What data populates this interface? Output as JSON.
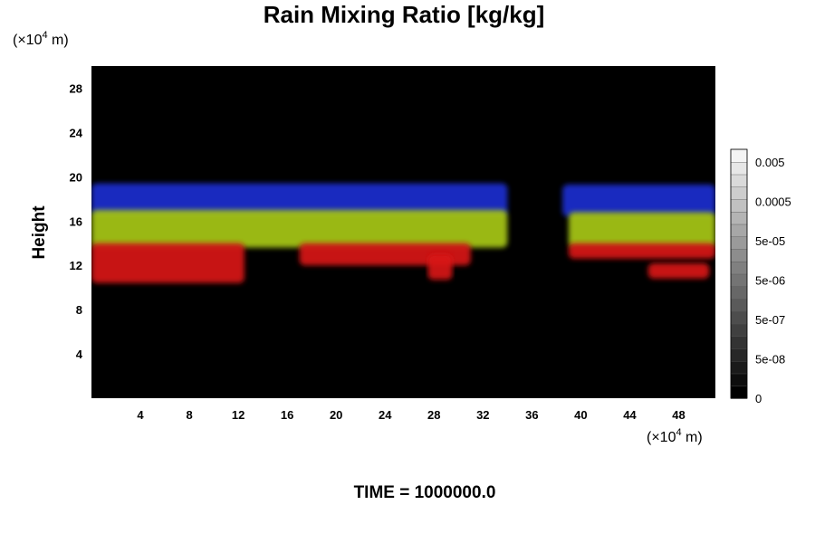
{
  "chart_data": {
    "type": "heatmap",
    "title": "Rain Mixing Ratio [kg/kg]",
    "ylabel": "Height",
    "xlabel": "",
    "x_unit": {
      "prefix": "(×10",
      "exponent": "4",
      "suffix": " m)"
    },
    "y_unit": {
      "prefix": "(×10",
      "exponent": "4",
      "suffix": " m)"
    },
    "xlim": [
      0,
      51
    ],
    "ylim": [
      0,
      30
    ],
    "x_ticks": [
      4,
      8,
      12,
      16,
      20,
      24,
      28,
      32,
      36,
      40,
      44,
      48
    ],
    "y_ticks": [
      4,
      8,
      12,
      16,
      20,
      24,
      28
    ],
    "background_color": "#000000",
    "bands": [
      {
        "color": "#1a2fd0",
        "segments": [
          {
            "x0": 0,
            "x1": 34,
            "y_top": 19.4,
            "y_bottom": 16.5
          },
          {
            "x0": 38.5,
            "x1": 51,
            "y_top": 19.3,
            "y_bottom": 16.4
          }
        ]
      },
      {
        "color": "#a8c818",
        "segments": [
          {
            "x0": 0,
            "x1": 34,
            "y_top": 17.0,
            "y_bottom": 13.6
          },
          {
            "x0": 39,
            "x1": 51,
            "y_top": 16.8,
            "y_bottom": 13.6
          }
        ]
      },
      {
        "color": "#d81212",
        "segments": [
          {
            "x0": 0,
            "x1": 12.5,
            "y_top": 14.0,
            "y_bottom": 10.4
          },
          {
            "x0": 17,
            "x1": 31,
            "y_top": 14.0,
            "y_bottom": 12.0
          },
          {
            "x0": 27.5,
            "x1": 29.5,
            "y_top": 13.0,
            "y_bottom": 10.7
          },
          {
            "x0": 39,
            "x1": 51,
            "y_top": 14.0,
            "y_bottom": 12.6
          },
          {
            "x0": 45.5,
            "x1": 50.5,
            "y_top": 12.2,
            "y_bottom": 10.8
          }
        ]
      }
    ],
    "colorbar": {
      "orientation": "vertical",
      "placement": "right",
      "labels": [
        "0.005",
        "0.0005",
        "5e-05",
        "5e-06",
        "5e-07",
        "5e-08",
        "0"
      ],
      "levels": 20,
      "color_low": "#000000",
      "color_high": "#f4f4f4"
    },
    "footer": "TIME = 1000000.0"
  }
}
